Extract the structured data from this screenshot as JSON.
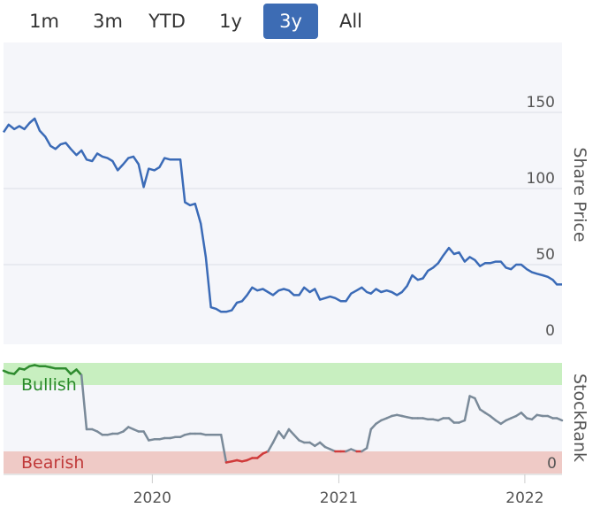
{
  "range_selector": {
    "buttons": [
      {
        "label": "1m",
        "active": false
      },
      {
        "label": "3m",
        "active": false
      },
      {
        "label": "YTD",
        "active": false
      },
      {
        "label": "1y",
        "active": false
      },
      {
        "label": "3y",
        "active": true
      },
      {
        "label": "All",
        "active": false
      }
    ]
  },
  "chart_data": [
    {
      "type": "line",
      "title": "",
      "ylabel": "Share Price",
      "ylim": [
        0,
        200
      ],
      "yticks": [
        0,
        50,
        100,
        150
      ],
      "x_range": [
        "2019-03-15",
        "2022-03-15"
      ],
      "line_color": "#3b6bb7",
      "series": [
        {
          "x": [
            "2019-03-15",
            "2019-03-25",
            "2019-04-05",
            "2019-04-15",
            "2019-04-25",
            "2019-05-05",
            "2019-05-15",
            "2019-05-25",
            "2019-06-05",
            "2019-06-15",
            "2019-06-25",
            "2019-07-05",
            "2019-07-15",
            "2019-07-25",
            "2019-08-05",
            "2019-08-15",
            "2019-08-25",
            "2019-09-05",
            "2019-09-15",
            "2019-09-25",
            "2019-10-05",
            "2019-10-15",
            "2019-10-25",
            "2019-11-05",
            "2019-11-15",
            "2019-11-25",
            "2019-12-05",
            "2019-12-15",
            "2019-12-25",
            "2020-01-05",
            "2020-01-15",
            "2020-01-25",
            "2020-02-05",
            "2020-02-15",
            "2020-02-25",
            "2020-03-05",
            "2020-03-15",
            "2020-03-25",
            "2020-04-05",
            "2020-04-15",
            "2020-04-25",
            "2020-05-05",
            "2020-05-15",
            "2020-05-25",
            "2020-06-05",
            "2020-06-15",
            "2020-06-25",
            "2020-07-05",
            "2020-07-15",
            "2020-07-25",
            "2020-08-05",
            "2020-08-15",
            "2020-08-25",
            "2020-09-05",
            "2020-09-15",
            "2020-09-25",
            "2020-10-05",
            "2020-10-15",
            "2020-10-25",
            "2020-11-05",
            "2020-11-15",
            "2020-11-25",
            "2020-12-05",
            "2020-12-15",
            "2020-12-25",
            "2021-01-05",
            "2021-01-15",
            "2021-01-25",
            "2021-02-05",
            "2021-02-15",
            "2021-02-25",
            "2021-03-05",
            "2021-03-15",
            "2021-03-25",
            "2021-04-05",
            "2021-04-15",
            "2021-04-25",
            "2021-05-05",
            "2021-05-15",
            "2021-05-25",
            "2021-06-05",
            "2021-06-15",
            "2021-06-25",
            "2021-07-05",
            "2021-07-15",
            "2021-07-25",
            "2021-08-05",
            "2021-08-15",
            "2021-08-25",
            "2021-09-05",
            "2021-09-15",
            "2021-09-25",
            "2021-10-05",
            "2021-10-15",
            "2021-10-25",
            "2021-11-05",
            "2021-11-15",
            "2021-11-25",
            "2021-12-05",
            "2021-12-15",
            "2021-12-25",
            "2022-01-05",
            "2022-01-15",
            "2022-01-25",
            "2022-02-05",
            "2022-02-15",
            "2022-02-25",
            "2022-03-05",
            "2022-03-15"
          ],
          "y": [
            137,
            142,
            139,
            141,
            139,
            143,
            146,
            138,
            134,
            128,
            126,
            129,
            130,
            126,
            122,
            125,
            119,
            118,
            123,
            121,
            120,
            118,
            112,
            116,
            120,
            121,
            116,
            101,
            113,
            112,
            114,
            120,
            119,
            119,
            119,
            91,
            89,
            90,
            77,
            55,
            22,
            21,
            19,
            19,
            20,
            25,
            26,
            30,
            35,
            33,
            34,
            32,
            30,
            33,
            34,
            33,
            30,
            30,
            35,
            32,
            34,
            27,
            28,
            29,
            28,
            26,
            26,
            31,
            33,
            35,
            32,
            31,
            34,
            32,
            33,
            32,
            30,
            32,
            36,
            43,
            40,
            41,
            46,
            48,
            51,
            56,
            61,
            57,
            58,
            52,
            55,
            53,
            49,
            51,
            51,
            52,
            52,
            48,
            47,
            50,
            50,
            47,
            45,
            44,
            43,
            42,
            40,
            37,
            37
          ]
        }
      ]
    },
    {
      "type": "line",
      "title": "",
      "ylabel": "StockRank",
      "ylim": [
        0,
        100
      ],
      "yticks": [
        0
      ],
      "bands": [
        {
          "label": "Bullish",
          "from": 80,
          "to": 100,
          "color": "#c8efc0",
          "text_color": "#2a8a2a",
          "line_color": "#2e8b2e"
        },
        {
          "label": "Bearish",
          "from": 0,
          "to": 20,
          "color": "#efcac6",
          "text_color": "#c03a3a",
          "line_color": "#d03b3b"
        }
      ],
      "neutral_line_color": "#7a8a99",
      "series": [
        {
          "x": [
            "2019-03-15",
            "2019-03-25",
            "2019-04-05",
            "2019-04-15",
            "2019-04-25",
            "2019-05-05",
            "2019-05-15",
            "2019-05-25",
            "2019-06-05",
            "2019-06-15",
            "2019-06-25",
            "2019-07-05",
            "2019-07-15",
            "2019-07-25",
            "2019-08-05",
            "2019-08-15",
            "2019-08-25",
            "2019-09-05",
            "2019-09-15",
            "2019-09-25",
            "2019-10-05",
            "2019-10-15",
            "2019-10-25",
            "2019-11-05",
            "2019-11-15",
            "2019-11-25",
            "2019-12-05",
            "2019-12-15",
            "2019-12-25",
            "2020-01-05",
            "2020-01-15",
            "2020-01-25",
            "2020-02-05",
            "2020-02-15",
            "2020-02-25",
            "2020-03-05",
            "2020-03-15",
            "2020-03-25",
            "2020-04-05",
            "2020-04-15",
            "2020-04-25",
            "2020-05-05",
            "2020-05-15",
            "2020-05-25",
            "2020-06-05",
            "2020-06-15",
            "2020-06-25",
            "2020-07-05",
            "2020-07-15",
            "2020-07-25",
            "2020-08-05",
            "2020-08-15",
            "2020-08-25",
            "2020-09-05",
            "2020-09-15",
            "2020-09-25",
            "2020-10-05",
            "2020-10-15",
            "2020-10-25",
            "2020-11-05",
            "2020-11-15",
            "2020-11-25",
            "2020-12-05",
            "2020-12-15",
            "2020-12-25",
            "2021-01-05",
            "2021-01-15",
            "2021-01-25",
            "2021-02-05",
            "2021-02-15",
            "2021-02-25",
            "2021-03-05",
            "2021-03-15",
            "2021-03-25",
            "2021-04-05",
            "2021-04-15",
            "2021-04-25",
            "2021-05-05",
            "2021-05-15",
            "2021-05-25",
            "2021-06-05",
            "2021-06-15",
            "2021-06-25",
            "2021-07-05",
            "2021-07-15",
            "2021-07-25",
            "2021-08-05",
            "2021-08-15",
            "2021-08-25",
            "2021-09-05",
            "2021-09-15",
            "2021-09-25",
            "2021-10-05",
            "2021-10-15",
            "2021-10-25",
            "2021-11-05",
            "2021-11-15",
            "2021-11-25",
            "2021-12-05",
            "2021-12-15",
            "2021-12-25",
            "2022-01-05",
            "2022-01-15",
            "2022-01-25",
            "2022-02-05",
            "2022-02-15",
            "2022-02-25",
            "2022-03-05",
            "2022-03-15"
          ],
          "y": [
            93,
            91,
            90,
            95,
            94,
            97,
            98,
            97,
            97,
            96,
            95,
            95,
            95,
            90,
            94,
            89,
            40,
            40,
            38,
            35,
            35,
            36,
            36,
            38,
            42,
            40,
            38,
            38,
            30,
            31,
            31,
            32,
            32,
            33,
            33,
            35,
            36,
            36,
            36,
            35,
            35,
            35,
            35,
            10,
            11,
            12,
            11,
            12,
            14,
            14,
            18,
            20,
            28,
            38,
            32,
            40,
            35,
            30,
            28,
            28,
            25,
            28,
            24,
            22,
            20,
            20,
            20,
            22,
            20,
            20,
            23,
            40,
            45,
            48,
            50,
            52,
            53,
            52,
            51,
            50,
            50,
            50,
            49,
            49,
            48,
            50,
            50,
            46,
            46,
            48,
            70,
            68,
            58,
            55,
            52,
            48,
            45,
            48,
            50,
            52,
            55,
            50,
            49,
            53,
            52,
            52,
            50,
            50,
            48
          ]
        }
      ]
    }
  ],
  "x_axis": {
    "ticks": [
      {
        "label": "2020",
        "date": "2020-01-01"
      },
      {
        "label": "2021",
        "date": "2021-01-01"
      },
      {
        "label": "2022",
        "date": "2022-01-01"
      }
    ]
  }
}
